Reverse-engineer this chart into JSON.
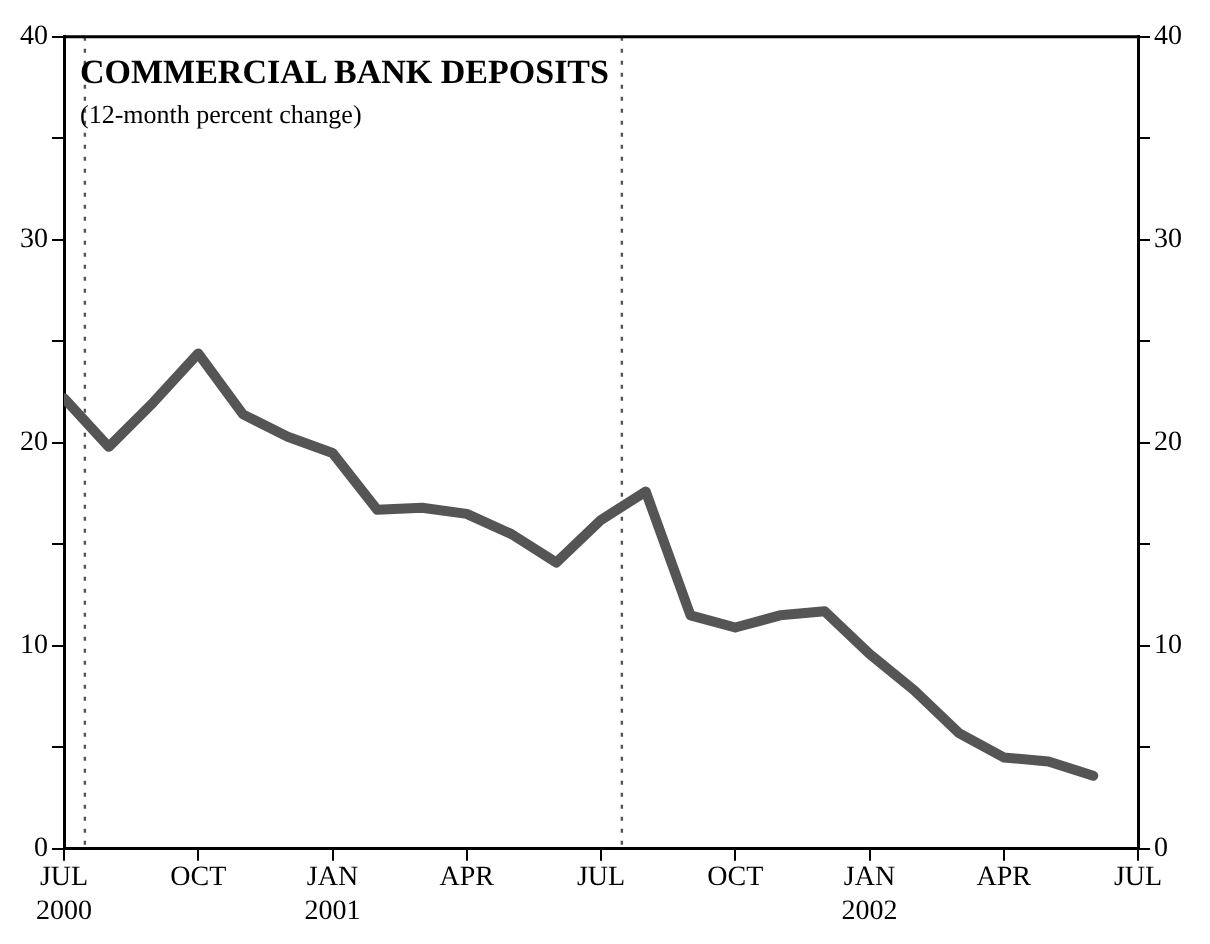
{
  "chart_data": {
    "type": "line",
    "title": "COMMERCIAL BANK DEPOSITS",
    "subtitle": "(12-month percent change)",
    "x": [
      "2000-07",
      "2000-08",
      "2000-09",
      "2000-10",
      "2000-11",
      "2000-12",
      "2001-01",
      "2001-02",
      "2001-03",
      "2001-04",
      "2001-05",
      "2001-06",
      "2001-07",
      "2001-08",
      "2001-09",
      "2001-10",
      "2001-11",
      "2001-12",
      "2002-01",
      "2002-02",
      "2002-03",
      "2002-04",
      "2002-05",
      "2002-06"
    ],
    "series": [
      {
        "color": "#555555",
        "values": [
          22.2,
          19.8,
          22.0,
          24.4,
          21.4,
          20.3,
          19.5,
          16.7,
          16.8,
          16.5,
          15.5,
          14.1,
          16.2,
          17.6,
          11.5,
          10.9,
          11.5,
          11.7,
          9.6,
          7.8,
          5.7,
          4.5,
          4.3,
          3.6
        ]
      }
    ],
    "xlim": [
      "2000-07",
      "2002-07"
    ],
    "xticks": [
      {
        "value": "2000-07",
        "label": "JUL\n2000"
      },
      {
        "value": "2000-10",
        "label": "OCT"
      },
      {
        "value": "2001-01",
        "label": "JAN\n2001"
      },
      {
        "value": "2001-04",
        "label": "APR"
      },
      {
        "value": "2001-07",
        "label": "JUL"
      },
      {
        "value": "2001-10",
        "label": "OCT"
      },
      {
        "value": "2002-01",
        "label": "JAN\n2002"
      },
      {
        "value": "2002-04",
        "label": "APR"
      },
      {
        "value": "2002-07",
        "label": "JUL"
      }
    ],
    "ylim": [
      0,
      40
    ],
    "yticks": [
      0,
      {
        "value": 5,
        "label": null
      },
      10,
      {
        "value": 15,
        "label": null
      },
      20,
      {
        "value": 25,
        "label": null
      },
      30,
      {
        "value": 35,
        "label": null
      },
      40
    ],
    "y2lim": [
      0,
      40
    ],
    "y2ticks": [
      0,
      {
        "value": 5,
        "label": null
      },
      10,
      {
        "value": 15,
        "label": null
      },
      20,
      {
        "value": 25,
        "label": null
      },
      30,
      {
        "value": 35,
        "label": null
      },
      40
    ],
    "ref_lines": [
      {
        "axis": "x",
        "value": "2000-07-15",
        "line_style": "dotted",
        "color": "#555555"
      },
      {
        "axis": "x",
        "value": "2001-07-15",
        "line_style": "dotted",
        "color": "#555555"
      }
    ],
    "grid": false,
    "legend": false,
    "marker": "none",
    "line_style": "solid"
  }
}
